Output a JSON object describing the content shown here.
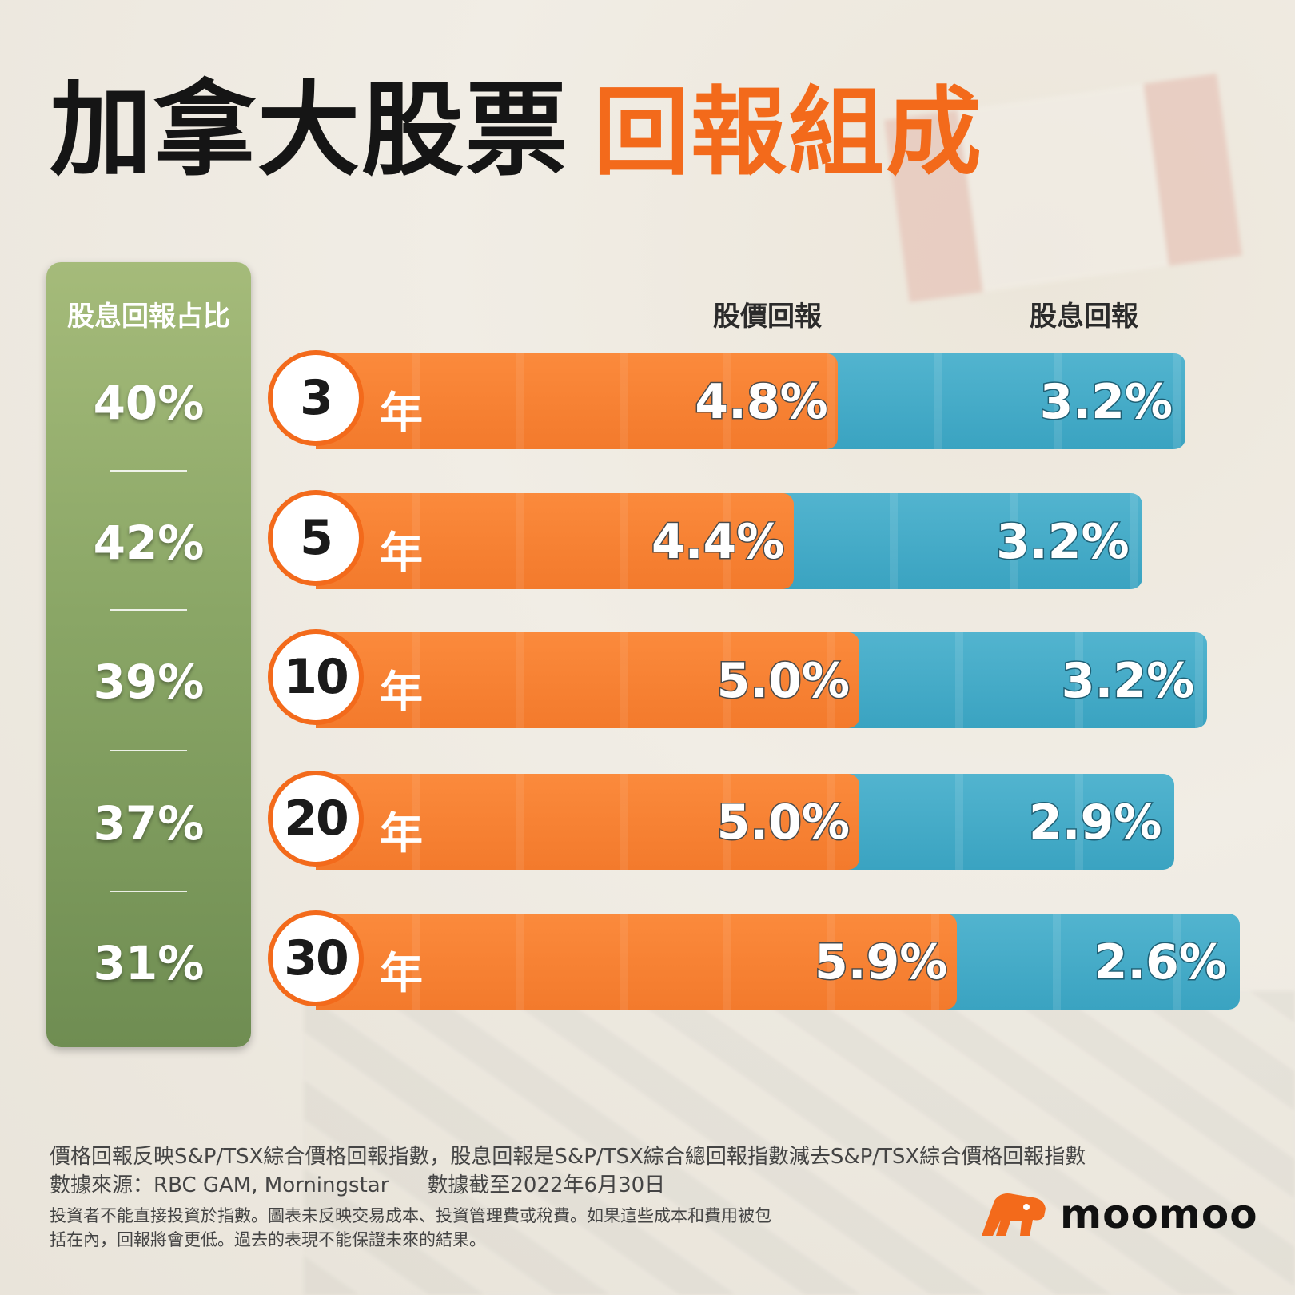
{
  "title": {
    "main": "加拿大股票",
    "highlight": "回報組成"
  },
  "panel": {
    "header": "股息回報占比"
  },
  "legend": {
    "price": "股價回報",
    "dividend": "股息回報"
  },
  "year_unit": "年",
  "chart_data": {
    "type": "bar",
    "stacked": true,
    "orientation": "horizontal",
    "categories": [
      "3",
      "5",
      "10",
      "20",
      "30"
    ],
    "series": [
      {
        "name": "股價回報",
        "values": [
          4.8,
          4.4,
          5.0,
          5.0,
          5.9
        ],
        "labels": [
          "4.8%",
          "4.4%",
          "5.0%",
          "5.0%",
          "5.9%"
        ],
        "color": "#f37a2c"
      },
      {
        "name": "股息回報",
        "values": [
          3.2,
          3.2,
          3.2,
          2.9,
          2.6
        ],
        "labels": [
          "3.2%",
          "3.2%",
          "3.2%",
          "2.9%",
          "2.6%"
        ],
        "color": "#3aa3c1"
      }
    ],
    "dividend_share": [
      "40%",
      "42%",
      "39%",
      "37%",
      "31%"
    ]
  },
  "footnotes": {
    "line1": "價格回報反映S&P/TSX綜合價格回報指數，股息回報是S&P/TSX綜合總回報指數減去S&P/TSX綜合價格回報指數",
    "source": "數據來源：RBC GAM, Morningstar",
    "date": "數據截至2022年6月30日",
    "disclaimer": "投資者不能直接投資於指數。圖表未反映交易成本、投資管理費或稅費。如果這些成本和費用被包括在內，回報將會更低。過去的表現不能保證未來的結果。"
  },
  "brand": {
    "name": "moomoo",
    "color": "#f36a1b"
  }
}
